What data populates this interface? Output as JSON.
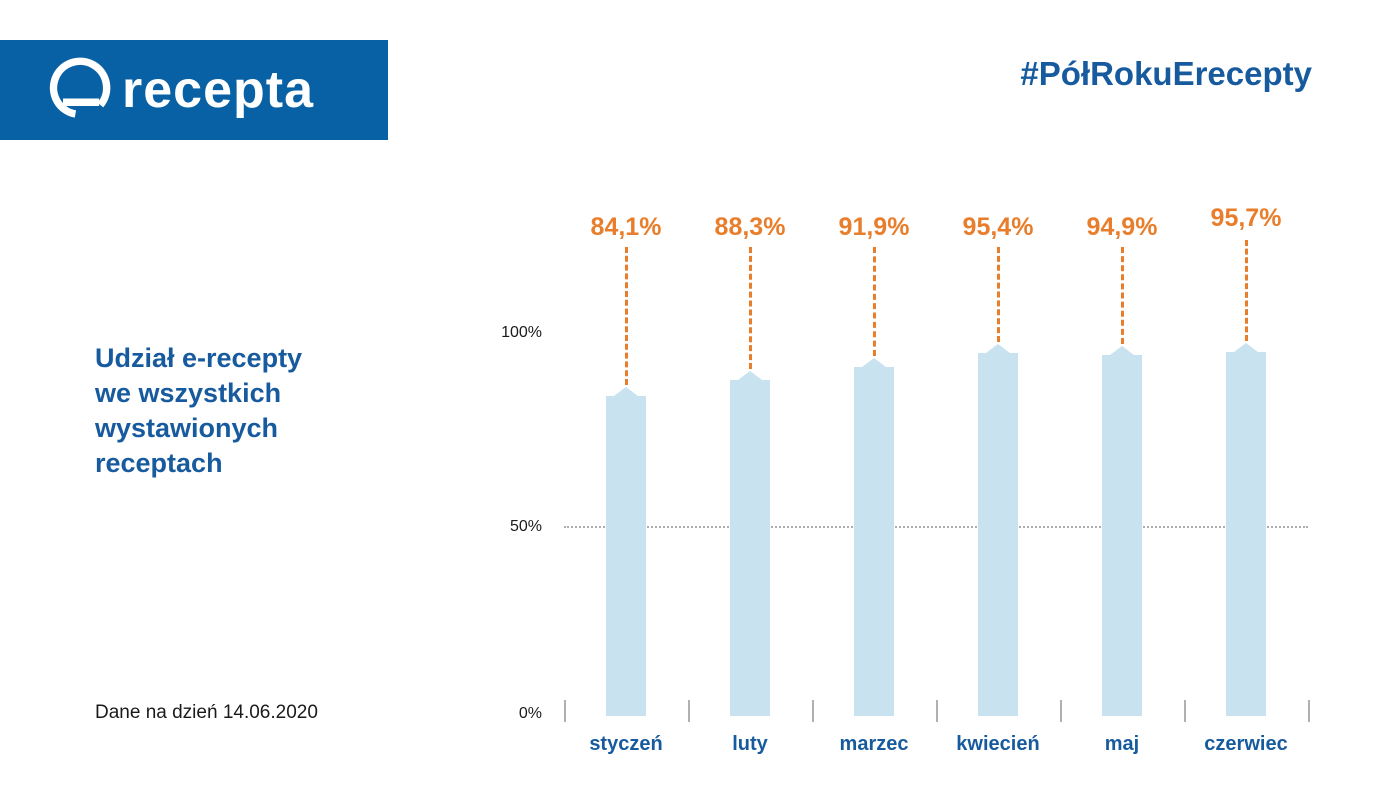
{
  "logo": {
    "text": "recepta",
    "icon": "e-recepta-logo-icon"
  },
  "hashtag": "#PółRokuErecepty",
  "title": {
    "lines": [
      "Udział e-recepty",
      "we wszystkich",
      "wystawionych",
      "receptach"
    ]
  },
  "footnote": "Dane na dzień 14.06.2020",
  "colors": {
    "banner_blue": "#0961A5",
    "text_blue": "#175B9E",
    "accent_orange": "#E87E2B",
    "bar_fill": "#C9E2F0",
    "grid_gray": "#ADADAD"
  },
  "chart_data": {
    "type": "bar",
    "title": "Udział e-recepty we wszystkich wystawionych receptach",
    "categories": [
      "styczeń",
      "luty",
      "marzec",
      "kwiecień",
      "maj",
      "czerwiec"
    ],
    "values": [
      84.1,
      88.3,
      91.9,
      95.4,
      94.9,
      95.7
    ],
    "value_labels": [
      "84,1%",
      "88,3%",
      "91,9%",
      "95,4%",
      "94,9%",
      "95,7%"
    ],
    "y_ticks": [
      "100%",
      "50%",
      "0%"
    ],
    "ylim": [
      0,
      100
    ],
    "gridline_at": 50,
    "grid": "single dotted line at 50%",
    "legend": "none",
    "xlabel": "",
    "ylabel": ""
  }
}
